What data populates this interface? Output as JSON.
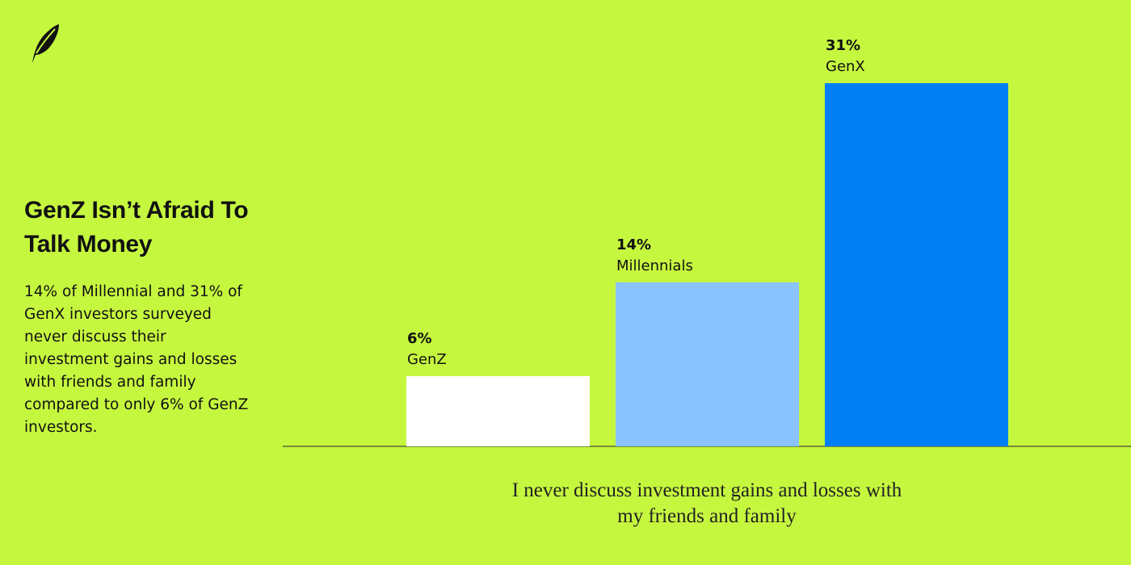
{
  "chart_data": {
    "type": "bar",
    "title": "GenZ Isn’t Afraid To Talk Money",
    "subtitle": "14% of Millennial and 31% of GenX investors surveyed never discuss their investment gains and losses with friends and family compared to only 6% of GenZ investors.",
    "x_label": "I never discuss investment gains and losses with my friends and family",
    "categories": [
      "GenZ",
      "Millennials",
      "GenX"
    ],
    "values": [
      6,
      14,
      31
    ],
    "value_labels": [
      "6%",
      "14%",
      "31%"
    ],
    "colors": [
      "#ffffff",
      "#8ac4ff",
      "#007ff5"
    ]
  }
}
